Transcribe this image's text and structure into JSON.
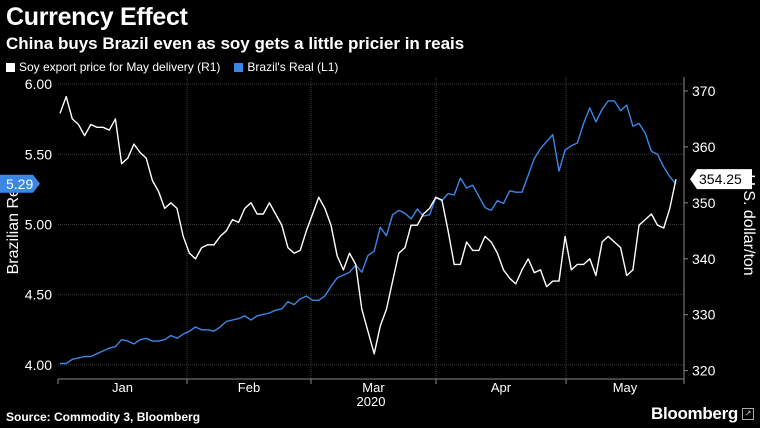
{
  "header": {
    "title": "Currency Effect",
    "subtitle": "China buys Brazil even as soy gets a little pricier in reais"
  },
  "legend": {
    "items": [
      {
        "label": "Soy export price for May delivery (R1)",
        "color": "#ffffff"
      },
      {
        "label": "Brazil's Real (L1)",
        "color": "#3b87e6"
      }
    ]
  },
  "footer": {
    "source": "Source: Commodity 3, Bloomberg",
    "brand": "Bloomberg"
  },
  "chart_data": {
    "type": "line",
    "xlabel": "2020",
    "ylabel_left": "Brazilian Real",
    "ylabel_right": "U.S. dollar/ton",
    "ylim_left": [
      3.9,
      6.05
    ],
    "ylim_right": [
      318.5,
      372.5
    ],
    "yticks_left": [
      "4.00",
      "4.50",
      "5.00",
      "5.50",
      "6.00"
    ],
    "yticks_right": [
      "320",
      "330",
      "340",
      "350",
      "360",
      "370"
    ],
    "x_month_labels": [
      "Jan",
      "Feb",
      "Mar",
      "Apr",
      "May"
    ],
    "grid": true,
    "last_value_left": "5.29",
    "last_value_right": "354.25",
    "series": [
      {
        "name": "Brazil's Real (L1)",
        "axis": "left",
        "color": "#3b87e6",
        "values": [
          4.01,
          4.01,
          4.04,
          4.05,
          4.06,
          4.06,
          4.08,
          4.1,
          4.12,
          4.13,
          4.18,
          4.17,
          4.15,
          4.18,
          4.19,
          4.17,
          4.17,
          4.18,
          4.21,
          4.19,
          4.22,
          4.24,
          4.27,
          4.25,
          4.25,
          4.24,
          4.27,
          4.31,
          4.32,
          4.33,
          4.35,
          4.32,
          4.35,
          4.36,
          4.37,
          4.39,
          4.4,
          4.45,
          4.43,
          4.47,
          4.49,
          4.46,
          4.46,
          4.49,
          4.56,
          4.62,
          4.64,
          4.66,
          4.71,
          4.66,
          4.78,
          4.81,
          4.98,
          4.92,
          5.07,
          5.1,
          5.08,
          5.04,
          5.11,
          5.06,
          5.07,
          5.19,
          5.17,
          5.22,
          5.21,
          5.33,
          5.26,
          5.28,
          5.2,
          5.12,
          5.1,
          5.17,
          5.15,
          5.24,
          5.23,
          5.23,
          5.35,
          5.47,
          5.54,
          5.59,
          5.64,
          5.38,
          5.53,
          5.56,
          5.58,
          5.72,
          5.83,
          5.73,
          5.82,
          5.88,
          5.88,
          5.81,
          5.85,
          5.7,
          5.72,
          5.65,
          5.52,
          5.5,
          5.41,
          5.34,
          5.29
        ]
      },
      {
        "name": "Soy export price for May delivery (R1)",
        "axis": "right",
        "color": "#ffffff",
        "values": [
          366.0,
          369.0,
          365.0,
          364.0,
          362.0,
          364.0,
          363.5,
          363.5,
          363.0,
          365.0,
          357.0,
          358.0,
          360.5,
          359.0,
          358.0,
          354.0,
          352.0,
          349.0,
          350.0,
          349.0,
          344.0,
          341.0,
          340.0,
          342.0,
          342.5,
          342.5,
          344.0,
          345.0,
          347.0,
          346.5,
          349.0,
          350.0,
          348.0,
          348.0,
          350.0,
          348.0,
          346.0,
          342.0,
          341.0,
          341.5,
          345.0,
          348.0,
          351.0,
          349.0,
          346.0,
          340.5,
          338.0,
          341.0,
          339.0,
          331.0,
          327.0,
          323.0,
          328.0,
          331.0,
          336.0,
          341.0,
          342.0,
          346.0,
          346.0,
          348.0,
          349.0,
          351.0,
          350.5,
          345.0,
          339.0,
          339.0,
          343.0,
          341.5,
          341.5,
          344.0,
          343.0,
          341.0,
          338.0,
          336.5,
          335.5,
          338.0,
          340.0,
          337.5,
          338.0,
          335.0,
          336.0,
          336.0,
          344.0,
          338.0,
          339.0,
          339.0,
          340.0,
          337.0,
          343.0,
          344.0,
          343.0,
          342.0,
          337.0,
          338.0,
          346.0,
          347.0,
          348.0,
          346.0,
          345.5,
          349.0,
          354.25
        ]
      }
    ]
  }
}
